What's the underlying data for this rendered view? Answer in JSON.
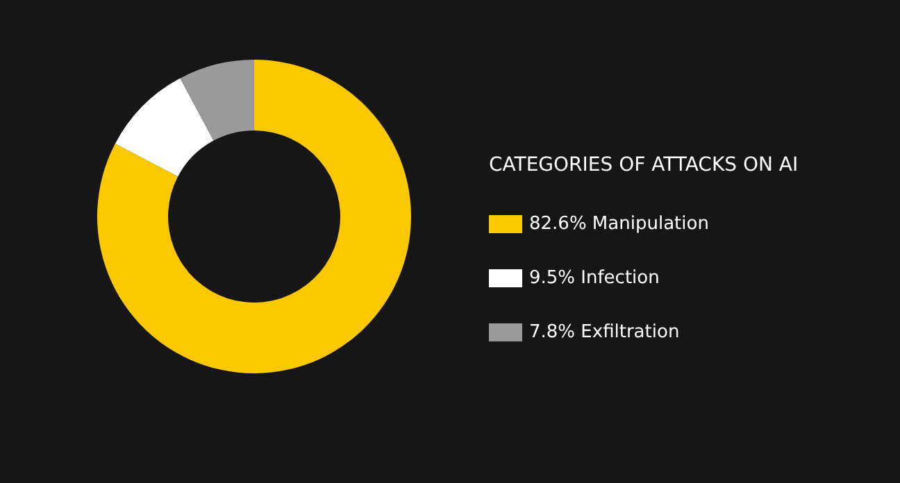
{
  "chart_data": {
    "type": "donut",
    "title": "CATEGORIES OF ATTACKS ON AI",
    "categories": [
      "Manipulation",
      "Infection",
      "Exfiltration"
    ],
    "values": [
      82.6,
      9.5,
      7.8
    ],
    "value_labels": [
      "82.6%",
      "9.5%",
      "7.8%"
    ],
    "colors": [
      "#fcc800",
      "#ffffff",
      "#9a9a9a"
    ],
    "legend": "right"
  }
}
